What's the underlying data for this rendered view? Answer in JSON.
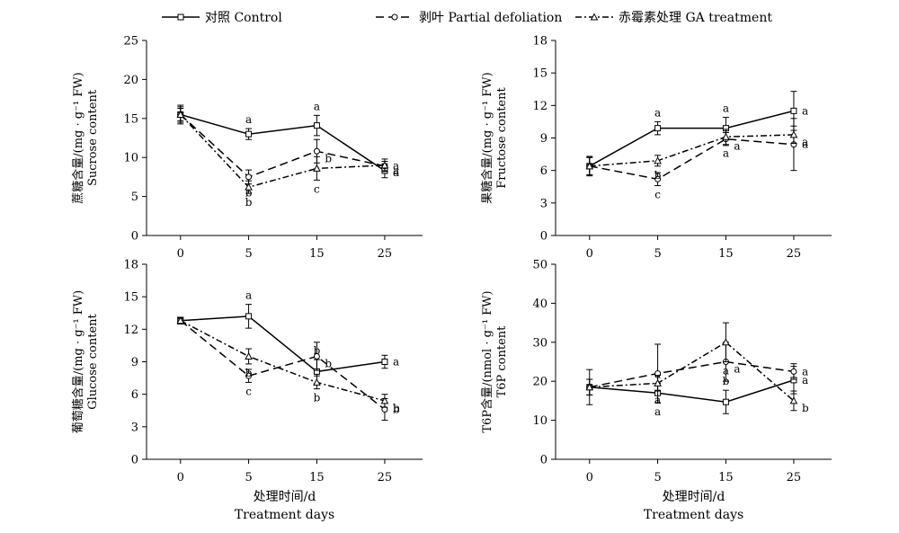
{
  "legend": [
    {
      "label": "对照 Control",
      "marker": "square",
      "dash": "solid"
    },
    {
      "label": "剥叶 Partial defoliation",
      "marker": "circle",
      "dash": "dashed"
    },
    {
      "label": "赤霉素处理 GA treatment",
      "marker": "triangle",
      "dash": "dashdot"
    }
  ],
  "colors": {
    "ink": "#000000",
    "background": "#ffffff"
  },
  "chart_data": [
    {
      "id": "sucrose",
      "type": "line",
      "ylabel_cn": "蔗糖含量/(mg · g⁻¹ FW)",
      "ylabel_en": "Sucrose content",
      "xlabel_cn": "",
      "xlabel_en": "",
      "x": [
        0,
        5,
        15,
        25
      ],
      "x_ticks": [
        "0",
        "5",
        "15",
        "25"
      ],
      "ylim": [
        0,
        25
      ],
      "y_ticks": [
        0,
        5,
        10,
        15,
        20,
        25
      ],
      "series": [
        {
          "name": "对照 Control",
          "values": [
            15.5,
            13.0,
            14.1,
            8.3
          ],
          "errors": [
            1.2,
            0.7,
            1.3,
            0.9
          ],
          "labels": [
            "",
            "a",
            "a",
            "a"
          ]
        },
        {
          "name": "剥叶 Partial defoliation",
          "values": [
            15.5,
            7.5,
            10.8,
            8.9
          ],
          "errors": [
            1.0,
            0.9,
            1.5,
            0.6
          ],
          "labels": [
            "",
            "b",
            "b",
            "a"
          ]
        },
        {
          "name": "赤霉素处理 GA treatment",
          "values": [
            15.5,
            6.2,
            8.6,
            9.0
          ],
          "errors": [
            0.8,
            0.8,
            1.5,
            0.8
          ],
          "labels": [
            "",
            "b",
            "c",
            "a"
          ]
        }
      ]
    },
    {
      "id": "fructose",
      "type": "line",
      "ylabel_cn": "果糖含量/(mg · g⁻¹ FW)",
      "ylabel_en": "Fructose content",
      "xlabel_cn": "",
      "xlabel_en": "",
      "x": [
        0,
        5,
        15,
        25
      ],
      "x_ticks": [
        "0",
        "5",
        "15",
        "25"
      ],
      "ylim": [
        0,
        18
      ],
      "y_ticks": [
        0,
        3,
        6,
        9,
        12,
        15,
        18
      ],
      "series": [
        {
          "name": "对照 Control",
          "values": [
            6.4,
            9.9,
            9.9,
            11.5
          ],
          "errors": [
            0.9,
            0.6,
            1.0,
            1.8
          ],
          "labels": [
            "",
            "a",
            "a",
            "a"
          ]
        },
        {
          "name": "剥叶 Partial defoliation",
          "values": [
            6.4,
            5.2,
            8.9,
            8.4
          ],
          "errors": [
            0.8,
            0.6,
            0.6,
            2.4
          ],
          "labels": [
            "",
            "c",
            "a",
            "a"
          ]
        },
        {
          "name": "赤霉素处理 GA treatment",
          "values": [
            6.4,
            6.9,
            9.1,
            9.3
          ],
          "errors": [
            0.8,
            0.5,
            0.7,
            0.8
          ],
          "labels": [
            "",
            "b",
            "a",
            "a"
          ]
        }
      ]
    },
    {
      "id": "glucose",
      "type": "line",
      "ylabel_cn": "葡萄糖含量/(mg · g⁻¹ FW)",
      "ylabel_en": "Glucose content",
      "xlabel_cn": "处理时间/d",
      "xlabel_en": "Treatment days",
      "x": [
        0,
        5,
        15,
        25
      ],
      "x_ticks": [
        "0",
        "5",
        "15",
        "25"
      ],
      "ylim": [
        0,
        18
      ],
      "y_ticks": [
        0,
        3,
        6,
        9,
        12,
        15,
        18
      ],
      "series": [
        {
          "name": "对照 Control",
          "values": [
            12.8,
            13.2,
            8.1,
            9.0
          ],
          "errors": [
            0.3,
            1.1,
            1.1,
            0.6
          ],
          "labels": [
            "",
            "a",
            "b",
            "a"
          ]
        },
        {
          "name": "剥叶 Partial defoliation",
          "values": [
            12.8,
            7.7,
            9.5,
            4.6
          ],
          "errors": [
            0.3,
            0.6,
            1.3,
            1.0
          ],
          "labels": [
            "",
            "c",
            "b",
            "b"
          ]
        },
        {
          "name": "赤霉素处理 GA treatment",
          "values": [
            12.8,
            9.5,
            7.1,
            5.4
          ],
          "errors": [
            0.3,
            0.7,
            0.6,
            0.6
          ],
          "labels": [
            "",
            "b",
            "b",
            "b"
          ]
        }
      ]
    },
    {
      "id": "t6p",
      "type": "line",
      "ylabel_cn": "T6P含量/(nmol · g⁻¹ FW)",
      "ylabel_en": "T6P content",
      "xlabel_cn": "处理时间/d",
      "xlabel_en": "Treatment days",
      "x": [
        0,
        5,
        15,
        25
      ],
      "x_ticks": [
        "0",
        "5",
        "15",
        "25"
      ],
      "ylim": [
        0,
        50
      ],
      "y_ticks": [
        0,
        10,
        20,
        30,
        40,
        50
      ],
      "series": [
        {
          "name": "对照 Control",
          "values": [
            18.5,
            17.0,
            14.7,
            20.3
          ],
          "errors": [
            4.5,
            2.5,
            3.0,
            3.5
          ],
          "labels": [
            "",
            "a",
            "b",
            "a"
          ]
        },
        {
          "name": "剥叶 Partial defoliation",
          "values": [
            18.5,
            22.0,
            25.0,
            22.5
          ],
          "errors": [
            2.0,
            7.5,
            5.0,
            2.0
          ],
          "labels": [
            "",
            "a",
            "a",
            "a"
          ]
        },
        {
          "name": "赤霉素处理 GA treatment",
          "values": [
            18.5,
            19.5,
            30.0,
            15.0
          ],
          "errors": [
            2.0,
            2.0,
            5.0,
            2.5
          ],
          "labels": [
            "",
            "a",
            "a",
            "b"
          ]
        }
      ]
    }
  ]
}
